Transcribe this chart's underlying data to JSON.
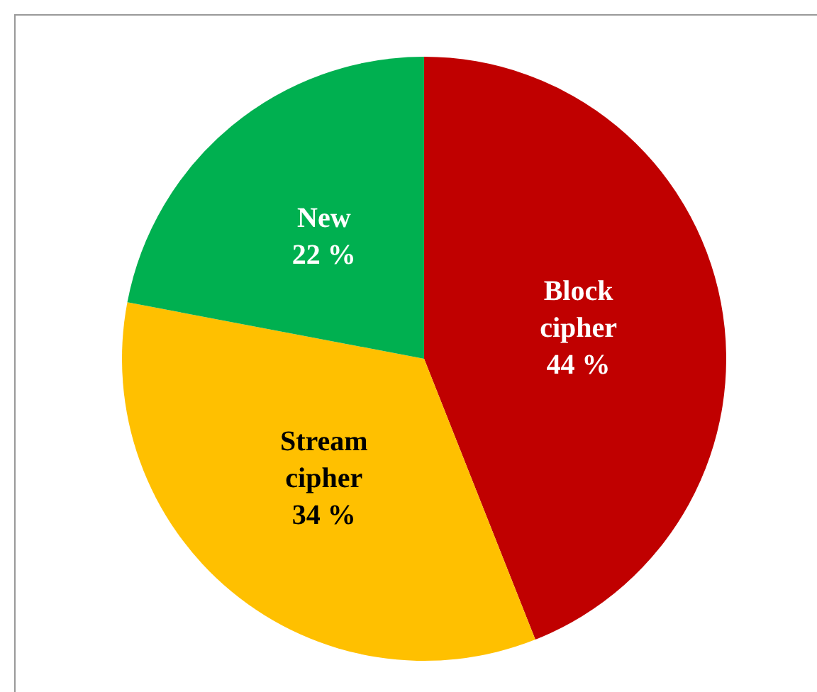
{
  "chart_data": {
    "type": "pie",
    "categories": [
      "Block\ncipher",
      "Stream\ncipher",
      "New"
    ],
    "values": [
      44,
      34,
      22
    ],
    "colors": [
      "#c00000",
      "#ffc000",
      "#00b050"
    ],
    "value_labels": [
      "44 %",
      "34 %",
      "22 %"
    ],
    "legend": false
  }
}
